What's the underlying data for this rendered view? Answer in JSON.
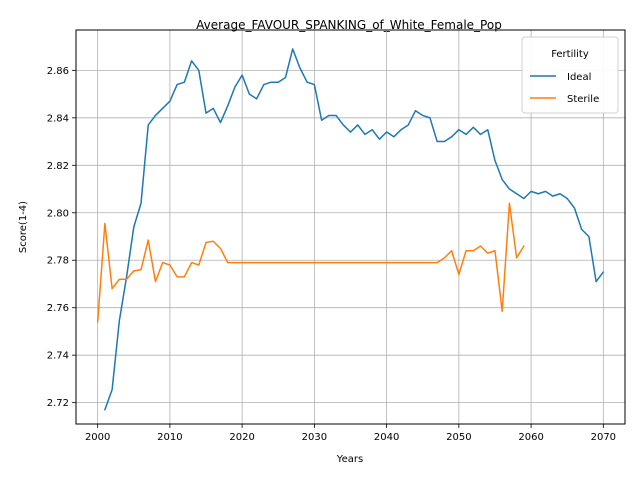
{
  "chart_data": {
    "type": "line",
    "title": "Average_FAVOUR_SPANKING_of_White_Female_Pop",
    "xlabel": "Years",
    "ylabel": "Score(1-4)",
    "xlim": [
      1997,
      2073
    ],
    "ylim": [
      2.711,
      2.877
    ],
    "xticks": [
      2000,
      2010,
      2020,
      2030,
      2040,
      2050,
      2060,
      2070
    ],
    "yticks": [
      2.72,
      2.74,
      2.76,
      2.78,
      2.8,
      2.82,
      2.84,
      2.86
    ],
    "grid": true,
    "legend": {
      "title": "Fertility",
      "placement": "top-right"
    },
    "series": [
      {
        "name": "Ideal",
        "color": "#1f77b4",
        "x": [
          2001,
          2002,
          2003,
          2004,
          2005,
          2006,
          2007,
          2008,
          2009,
          2010,
          2011,
          2012,
          2013,
          2014,
          2015,
          2016,
          2017,
          2018,
          2019,
          2020,
          2021,
          2022,
          2023,
          2024,
          2025,
          2026,
          2027,
          2028,
          2029,
          2030,
          2031,
          2032,
          2033,
          2034,
          2035,
          2036,
          2037,
          2038,
          2039,
          2040,
          2041,
          2042,
          2043,
          2044,
          2045,
          2046,
          2047,
          2048,
          2049,
          2050,
          2051,
          2052,
          2053,
          2054,
          2055,
          2056,
          2057,
          2058,
          2059,
          2060,
          2061,
          2062,
          2063,
          2064,
          2065,
          2066,
          2067,
          2068,
          2069,
          2070
        ],
        "y": [
          2.717,
          2.7255,
          2.7545,
          2.773,
          2.794,
          2.804,
          2.837,
          2.841,
          2.844,
          2.847,
          2.854,
          2.855,
          2.864,
          2.86,
          2.842,
          2.844,
          2.838,
          2.845,
          2.853,
          2.858,
          2.85,
          2.848,
          2.854,
          2.855,
          2.855,
          2.857,
          2.869,
          2.861,
          2.855,
          2.854,
          2.839,
          2.841,
          2.841,
          2.837,
          2.834,
          2.837,
          2.833,
          2.835,
          2.831,
          2.834,
          2.832,
          2.835,
          2.837,
          2.843,
          2.841,
          2.84,
          2.83,
          2.83,
          2.832,
          2.835,
          2.833,
          2.836,
          2.833,
          2.835,
          2.822,
          2.814,
          2.81,
          2.808,
          2.806,
          2.809,
          2.808,
          2.809,
          2.807,
          2.808,
          2.806,
          2.802,
          2.793,
          2.79,
          2.771,
          2.775
        ]
      },
      {
        "name": "Sterile",
        "color": "#ff7f0e",
        "x": [
          2000,
          2001,
          2002,
          2003,
          2004,
          2005,
          2006,
          2007,
          2008,
          2009,
          2010,
          2011,
          2012,
          2013,
          2014,
          2015,
          2016,
          2017,
          2018,
          2019,
          2020,
          2021,
          2022,
          2023,
          2024,
          2025,
          2026,
          2027,
          2028,
          2029,
          2030,
          2031,
          2032,
          2033,
          2034,
          2035,
          2036,
          2037,
          2038,
          2039,
          2040,
          2041,
          2042,
          2043,
          2044,
          2045,
          2046,
          2047,
          2048,
          2049,
          2050,
          2051,
          2052,
          2053,
          2054,
          2055,
          2056,
          2057,
          2058,
          2059
        ],
        "y": [
          2.754,
          2.7955,
          2.768,
          2.772,
          2.772,
          2.7755,
          2.776,
          2.7885,
          2.771,
          2.779,
          2.778,
          2.773,
          2.773,
          2.779,
          2.778,
          2.7875,
          2.788,
          2.785,
          2.779,
          2.779,
          2.779,
          2.779,
          2.779,
          2.779,
          2.779,
          2.779,
          2.779,
          2.779,
          2.779,
          2.779,
          2.779,
          2.779,
          2.779,
          2.779,
          2.779,
          2.779,
          2.779,
          2.779,
          2.779,
          2.779,
          2.779,
          2.779,
          2.779,
          2.779,
          2.779,
          2.779,
          2.779,
          2.779,
          2.781,
          2.784,
          2.774,
          2.784,
          2.784,
          2.786,
          2.783,
          2.784,
          2.7585,
          2.804,
          2.781,
          2.786
        ]
      }
    ]
  }
}
